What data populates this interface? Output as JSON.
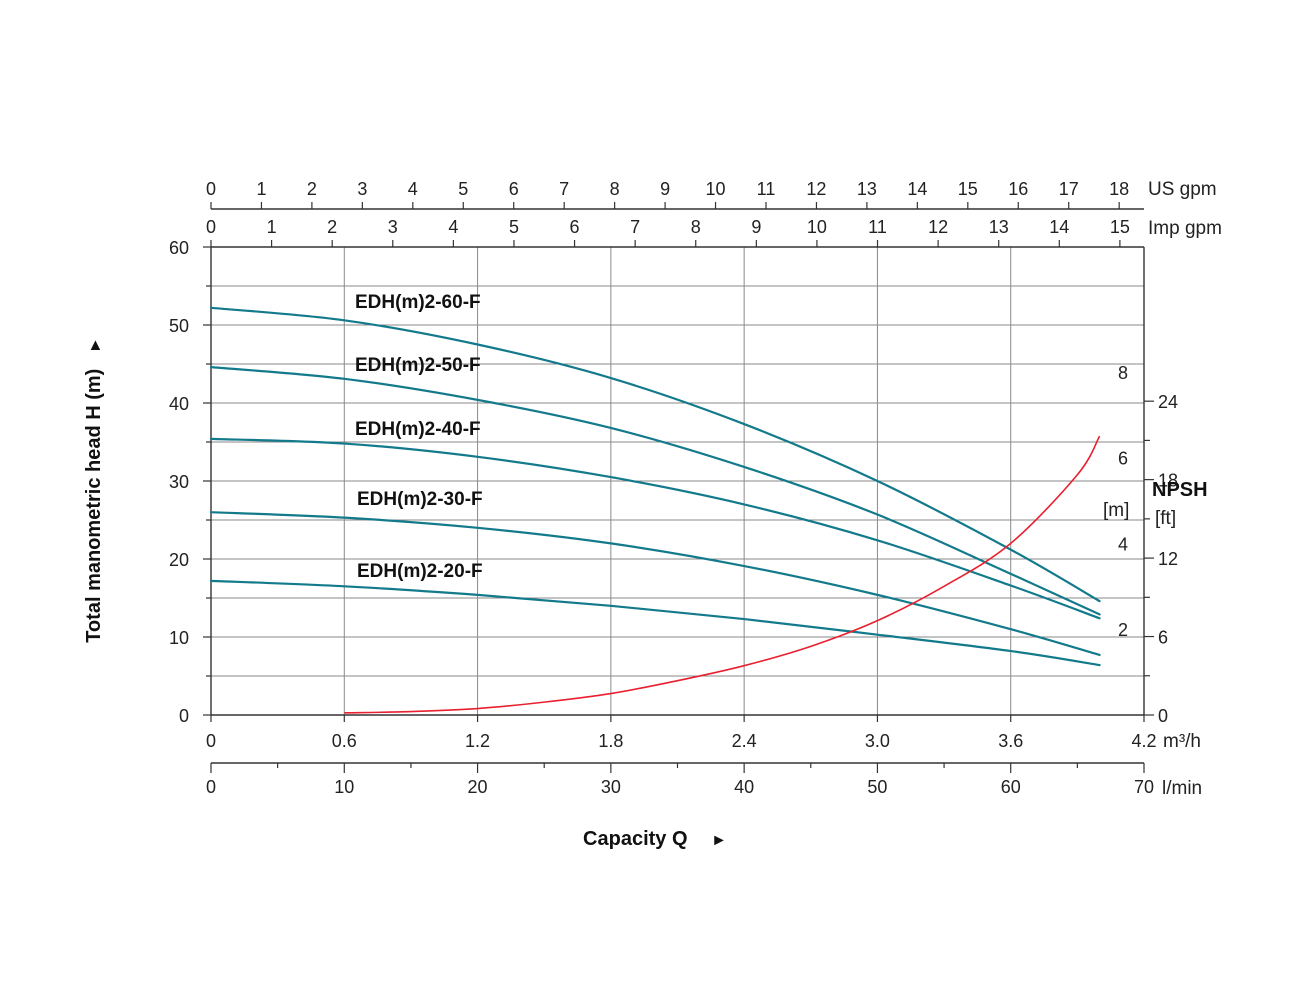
{
  "chart_data": {
    "type": "line",
    "y_axis": {
      "title": "Total manometric head H (m)",
      "title_arrow": "►",
      "ticks": [
        "0",
        "10",
        "20",
        "30",
        "40",
        "50",
        "60"
      ],
      "ylim": [
        0,
        60
      ]
    },
    "x_axes": {
      "m3h": {
        "ticks": [
          "0",
          "0.6",
          "1.2",
          "1.8",
          "2.4",
          "3.0",
          "3.6",
          "4.2"
        ],
        "unit": "m³/h",
        "xlim": [
          0,
          4.2
        ]
      },
      "lmin": {
        "ticks": [
          "0",
          "10",
          "20",
          "30",
          "40",
          "50",
          "60",
          "70"
        ],
        "unit": "l/min"
      },
      "us_gpm": {
        "ticks": [
          "0",
          "1",
          "2",
          "3",
          "4",
          "5",
          "6",
          "7",
          "8",
          "9",
          "10",
          "11",
          "12",
          "13",
          "14",
          "15",
          "16",
          "17",
          "18"
        ],
        "unit": "US gpm"
      },
      "imp_gpm": {
        "ticks": [
          "0",
          "1",
          "2",
          "3",
          "4",
          "5",
          "6",
          "7",
          "8",
          "9",
          "10",
          "11",
          "12",
          "13",
          "14",
          "15"
        ],
        "unit": "Imp gpm"
      }
    },
    "x_title": "Capacity Q",
    "x_title_arrow": "►",
    "npsh": {
      "title": "NPSH",
      "m_unit": "[m]",
      "ft_unit": "[ft]",
      "m_ticks": [
        "2",
        "4",
        "6",
        "8"
      ],
      "ft_ticks": [
        "0",
        "6",
        "12",
        "18",
        "24"
      ],
      "color": "#e8202f",
      "points_m3h": [
        0.6,
        0.9,
        1.2,
        1.5,
        1.8,
        2.1,
        2.4,
        2.7,
        3.0,
        3.3,
        3.6,
        3.9,
        4.0
      ],
      "values_m": [
        0.05,
        0.08,
        0.15,
        0.3,
        0.5,
        0.8,
        1.15,
        1.6,
        2.2,
        3.0,
        4.0,
        5.6,
        6.5
      ]
    },
    "series_color": "#137a8c",
    "x": [
      0,
      0.6,
      1.2,
      1.8,
      2.4,
      3.0,
      3.6,
      4.0
    ],
    "series": [
      {
        "name": "EDH(m)2-60-F",
        "values": [
          52.2,
          50.6,
          47.5,
          43.2,
          37.3,
          30.0,
          21.2,
          14.6
        ]
      },
      {
        "name": "EDH(m)2-50-F",
        "values": [
          44.6,
          43.1,
          40.4,
          36.8,
          31.8,
          25.7,
          18.1,
          12.9
        ]
      },
      {
        "name": "EDH(m)2-40-F",
        "values": [
          35.4,
          34.8,
          33.1,
          30.5,
          27.0,
          22.4,
          16.6,
          12.4
        ]
      },
      {
        "name": "EDH(m)2-30-F",
        "values": [
          26.0,
          25.3,
          24.0,
          22.0,
          19.1,
          15.4,
          11.0,
          7.7
        ]
      },
      {
        "name": "EDH(m)2-20-F",
        "values": [
          17.2,
          16.5,
          15.4,
          14.0,
          12.3,
          10.3,
          8.2,
          6.4
        ]
      }
    ],
    "grid": true
  }
}
